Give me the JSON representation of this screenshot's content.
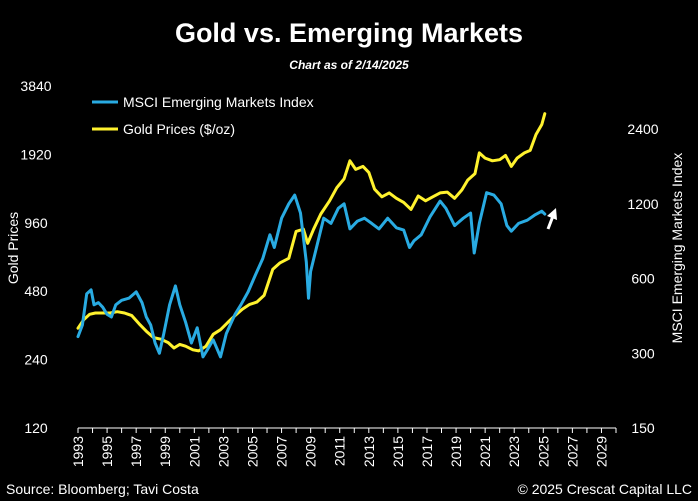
{
  "chart_data": {
    "type": "line",
    "title": "Gold vs. Emerging Markets",
    "subtitle": "Chart as of 2/14/2025",
    "ylabel_left": "Gold Prices",
    "ylabel_right": "MSCI Emerging Markets Index",
    "y_left_scale": "log",
    "y_right_scale": "log",
    "y_left_ticks": [
      120,
      240,
      480,
      960,
      1920,
      3840
    ],
    "y_right_ticks": [
      150,
      300,
      600,
      1200,
      2400
    ],
    "x_ticks": [
      "1993",
      "1995",
      "1997",
      "1999",
      "2001",
      "2003",
      "2005",
      "2007",
      "2009",
      "2011",
      "2013",
      "2015",
      "2017",
      "2019",
      "2021",
      "2023",
      "2025",
      "2027",
      "2029"
    ],
    "xlim": [
      1993,
      2030
    ],
    "ylim_left": [
      120,
      3840
    ],
    "ylim_right": [
      150,
      3000
    ],
    "grid": false,
    "legend_position": "top-left",
    "colors": {
      "msci": "#29ABE2",
      "gold": "#FFF22E",
      "background": "#000000",
      "text": "#FFFFFF"
    },
    "series": [
      {
        "name": "MSCI Emerging Markets Index",
        "axis": "right",
        "color": "#29ABE2",
        "x": [
          1993.0,
          1993.3,
          1993.6,
          1993.9,
          1994.1,
          1994.4,
          1994.7,
          1995.0,
          1995.3,
          1995.6,
          1996.0,
          1996.5,
          1997.0,
          1997.4,
          1997.7,
          1998.0,
          1998.3,
          1998.6,
          1998.9,
          1999.3,
          1999.7,
          2000.0,
          2000.4,
          2000.8,
          2001.2,
          2001.6,
          2001.9,
          2002.3,
          2002.8,
          2003.2,
          2003.8,
          2004.2,
          2004.7,
          2005.2,
          2005.7,
          2006.2,
          2006.5,
          2007.0,
          2007.5,
          2007.9,
          2008.3,
          2008.7,
          2008.85,
          2009.0,
          2009.4,
          2009.9,
          2010.4,
          2010.9,
          2011.3,
          2011.7,
          2012.2,
          2012.7,
          2013.2,
          2013.7,
          2014.3,
          2014.9,
          2015.4,
          2015.8,
          2016.1,
          2016.6,
          2017.2,
          2017.9,
          2018.3,
          2018.9,
          2019.5,
          2020.0,
          2020.25,
          2020.6,
          2021.1,
          2021.6,
          2022.1,
          2022.5,
          2022.8,
          2023.3,
          2023.9,
          2024.4,
          2024.9,
          2025.1
        ],
        "values": [
          350,
          390,
          520,
          540,
          470,
          480,
          460,
          430,
          420,
          470,
          490,
          500,
          530,
          480,
          420,
          390,
          330,
          300,
          360,
          470,
          560,
          470,
          400,
          330,
          380,
          290,
          310,
          340,
          290,
          360,
          430,
          470,
          530,
          620,
          720,
          900,
          800,
          1050,
          1200,
          1300,
          1100,
          700,
          500,
          640,
          800,
          1050,
          1000,
          1150,
          1200,
          950,
          1020,
          1050,
          1000,
          950,
          1050,
          960,
          940,
          800,
          850,
          900,
          1060,
          1230,
          1150,
          980,
          1050,
          1100,
          760,
          1000,
          1330,
          1300,
          1200,
          980,
          930,
          1000,
          1030,
          1080,
          1120,
          1090
        ]
      },
      {
        "name": "Gold Prices ($/oz)",
        "axis": "left",
        "color": "#FFF22E",
        "x": [
          1993.0,
          1993.4,
          1993.8,
          1994.2,
          1994.7,
          1995.2,
          1995.7,
          1996.2,
          1996.7,
          1997.2,
          1997.7,
          1998.2,
          1998.7,
          1999.2,
          1999.6,
          2000.0,
          2000.4,
          2000.9,
          2001.3,
          2001.8,
          2002.3,
          2002.8,
          2003.3,
          2003.8,
          2004.3,
          2004.8,
          2005.3,
          2005.8,
          2006.4,
          2006.9,
          2007.5,
          2008.0,
          2008.5,
          2008.8,
          2009.2,
          2009.7,
          2010.3,
          2010.8,
          2011.3,
          2011.7,
          2012.1,
          2012.6,
          2013.0,
          2013.4,
          2013.9,
          2014.4,
          2014.9,
          2015.4,
          2015.9,
          2016.4,
          2016.9,
          2017.4,
          2017.9,
          2018.4,
          2018.9,
          2019.4,
          2019.8,
          2020.3,
          2020.6,
          2021.0,
          2021.5,
          2022.0,
          2022.4,
          2022.8,
          2023.2,
          2023.7,
          2024.1,
          2024.5,
          2024.9,
          2025.1
        ],
        "values": [
          330,
          360,
          380,
          385,
          385,
          385,
          390,
          385,
          375,
          345,
          320,
          300,
          295,
          285,
          270,
          280,
          275,
          265,
          262,
          275,
          310,
          325,
          350,
          375,
          400,
          420,
          430,
          460,
          600,
          640,
          670,
          880,
          900,
          780,
          900,
          1050,
          1200,
          1370,
          1500,
          1800,
          1650,
          1700,
          1600,
          1350,
          1250,
          1300,
          1230,
          1180,
          1100,
          1260,
          1200,
          1250,
          1300,
          1310,
          1230,
          1340,
          1480,
          1580,
          1950,
          1850,
          1800,
          1820,
          1900,
          1700,
          1850,
          1950,
          2000,
          2350,
          2600,
          2900
        ]
      }
    ]
  },
  "legend": [
    {
      "label": "MSCI Emerging Markets Index",
      "color": "#29ABE2"
    },
    {
      "label": "Gold Prices ($/oz)",
      "color": "#FFF22E"
    }
  ],
  "footer": {
    "source": "Source: Bloomberg; Tavi Costa",
    "copyright": "© 2025 Crescat Capital LLC"
  }
}
